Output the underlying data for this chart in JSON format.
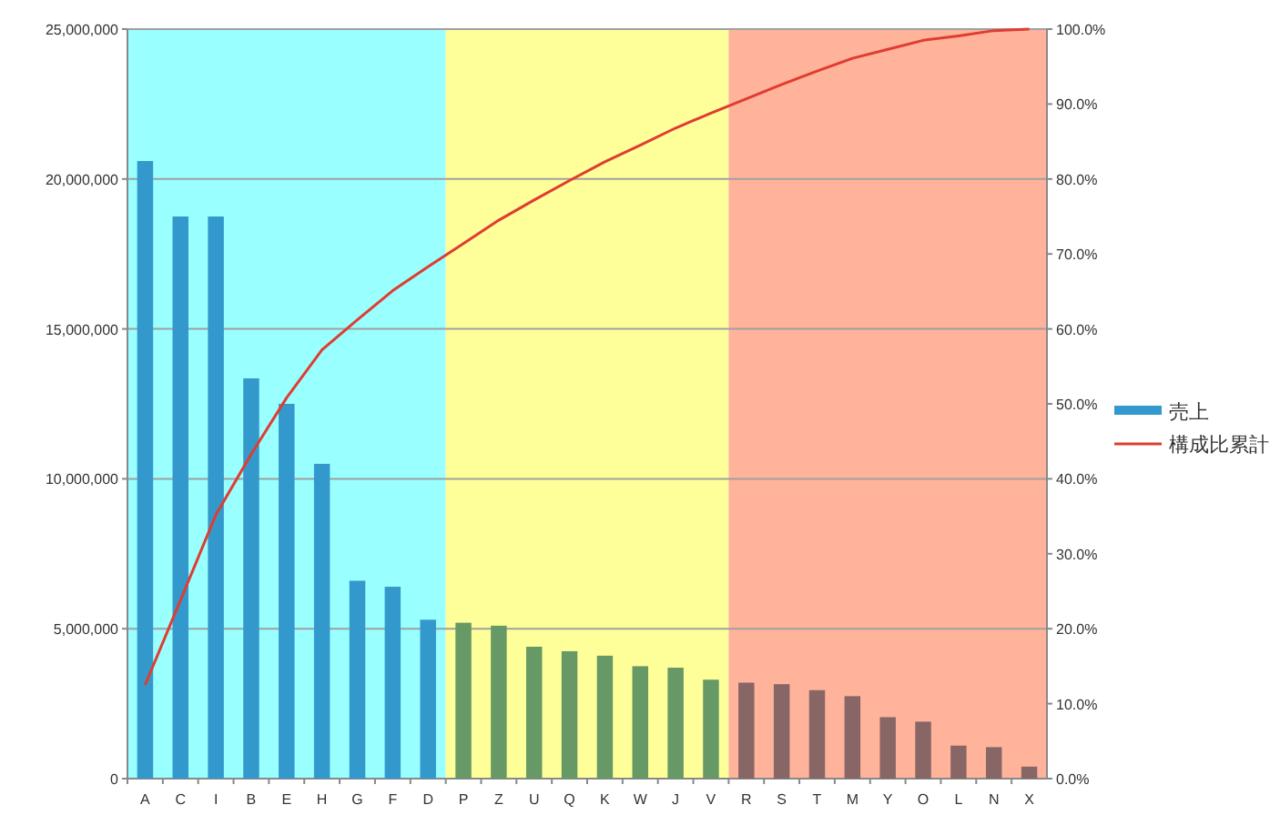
{
  "chart_data": {
    "type": "bar",
    "categories": [
      "A",
      "C",
      "I",
      "B",
      "E",
      "H",
      "G",
      "F",
      "D",
      "P",
      "Z",
      "U",
      "Q",
      "K",
      "W",
      "J",
      "V",
      "R",
      "S",
      "T",
      "M",
      "Y",
      "O",
      "L",
      "N",
      "X"
    ],
    "series": [
      {
        "name": "売上",
        "color": "#3399cc",
        "colors": [
          "#3399cc",
          "#3399cc",
          "#3399cc",
          "#3399cc",
          "#3399cc",
          "#3399cc",
          "#3399cc",
          "#3399cc",
          "#3399cc",
          "#669966",
          "#669966",
          "#669966",
          "#669966",
          "#669966",
          "#669966",
          "#669966",
          "#669966",
          "#886666",
          "#886666",
          "#886666",
          "#886666",
          "#886666",
          "#886666",
          "#886666",
          "#886666",
          "#886666"
        ],
        "values": [
          20600000,
          18750000,
          18750000,
          13350000,
          12500000,
          10500000,
          6600000,
          6400000,
          5300000,
          5200000,
          5100000,
          4400000,
          4250000,
          4100000,
          3750000,
          3700000,
          3300000,
          3200000,
          3150000,
          2950000,
          2750000,
          2050000,
          1900000,
          1100000,
          1050000,
          400000
        ]
      },
      {
        "name": "構成比累計",
        "type": "line",
        "axis": "y2",
        "color": "#e03c31",
        "values": [
          12.5,
          23.8,
          35.2,
          43.3,
          50.8,
          57.2,
          61.2,
          65.1,
          68.3,
          71.4,
          74.5,
          77.2,
          79.8,
          82.3,
          84.5,
          86.8,
          88.8,
          90.7,
          92.6,
          94.4,
          96.1,
          97.3,
          98.5,
          99.1,
          99.8,
          100.0
        ]
      }
    ],
    "ylim": [
      0,
      25000000
    ],
    "yticks": [
      {
        "value": 0,
        "label": "0"
      },
      {
        "value": 5000000,
        "label": "5,000,000"
      },
      {
        "value": 10000000,
        "label": "10,000,000"
      },
      {
        "value": 15000000,
        "label": "15,000,000"
      },
      {
        "value": 20000000,
        "label": "20,000,000"
      },
      {
        "value": 25000000,
        "label": "25,000,000"
      }
    ],
    "y2lim": [
      0,
      100
    ],
    "y2ticks": [
      {
        "value": 0,
        "label": "0.0%"
      },
      {
        "value": 10,
        "label": "10.0%"
      },
      {
        "value": 20,
        "label": "20.0%"
      },
      {
        "value": 30,
        "label": "30.0%"
      },
      {
        "value": 40,
        "label": "40.0%"
      },
      {
        "value": 50,
        "label": "50.0%"
      },
      {
        "value": 60,
        "label": "60.0%"
      },
      {
        "value": 70,
        "label": "70.0%"
      },
      {
        "value": 80,
        "label": "80.0%"
      },
      {
        "value": 90,
        "label": "90.0%"
      },
      {
        "value": 100,
        "label": "100.0%"
      }
    ],
    "bands": [
      {
        "axis": "x",
        "from": "A",
        "to": "D",
        "color": "#99ffff"
      },
      {
        "axis": "x",
        "from": "P",
        "to": "V",
        "color": "#ffff99"
      },
      {
        "axis": "x",
        "from": "R",
        "to": "X",
        "color": "#ffb39a"
      }
    ],
    "grid": "y",
    "legend": "right"
  }
}
